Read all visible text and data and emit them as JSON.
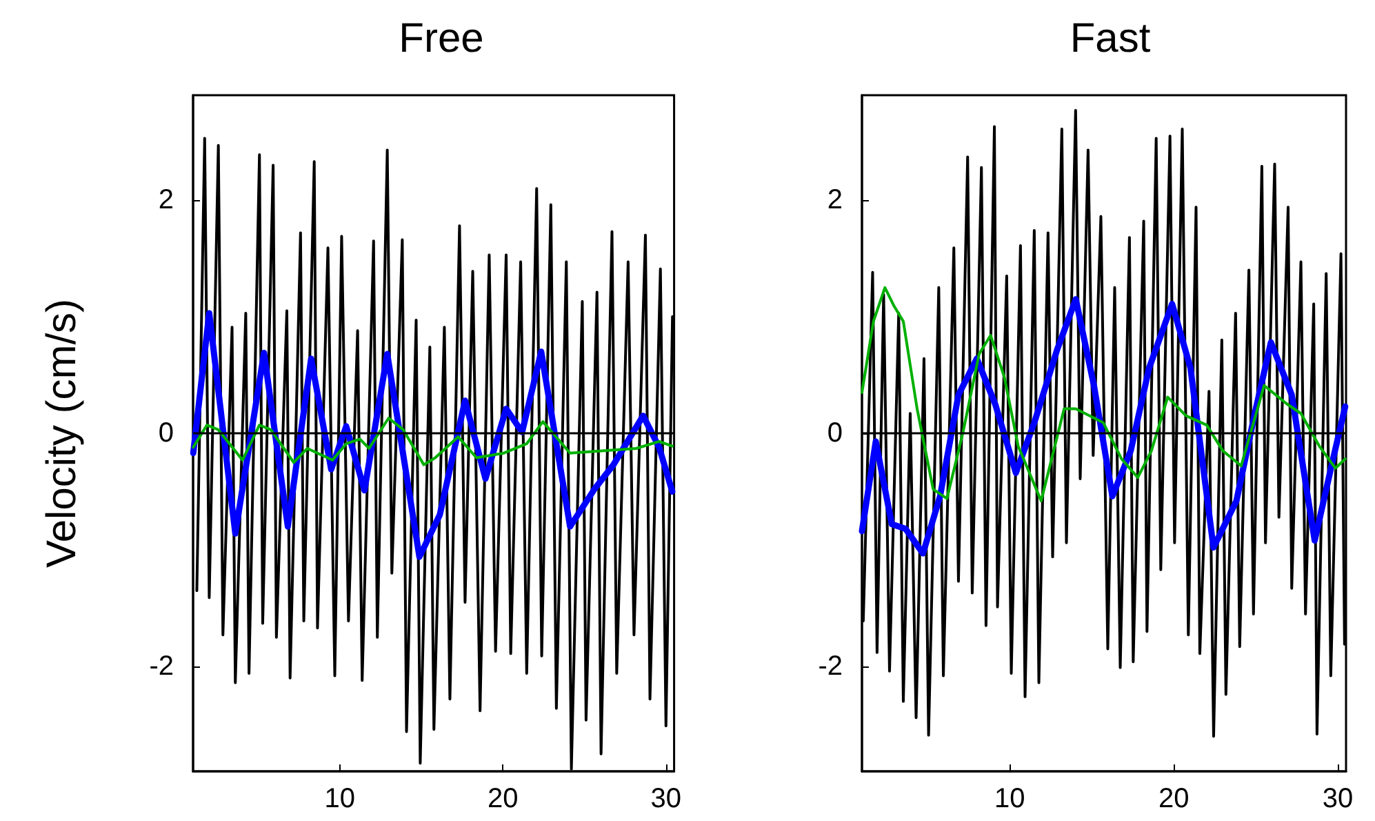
{
  "chart_data": [
    {
      "type": "line",
      "title": "Free",
      "ylabel": "Velocity (cm/s)",
      "xlim": [
        1,
        30.5
      ],
      "xticks": [
        10,
        20,
        30
      ],
      "ylim": [
        -2.9,
        2.9
      ],
      "yticks": [
        -2,
        0,
        2
      ],
      "grid": false,
      "marker": "none",
      "line_style": "solid",
      "ref_lines": [
        {
          "axis": "y",
          "value": 0,
          "color": "#000000"
        }
      ],
      "series": [
        {
          "color": "#000000",
          "x": [
            1.23,
            1.71,
            1.99,
            2.55,
            2.83,
            3.39,
            3.59,
            4.23,
            4.43,
            5.07,
            5.27,
            5.91,
            6.11,
            6.75,
            6.95,
            7.59,
            7.79,
            8.43,
            8.63,
            9.27,
            9.69,
            10.11,
            10.53,
            11.09,
            11.37,
            12.07,
            12.3,
            12.91,
            13.19,
            13.83,
            14.09,
            14.68,
            14.93,
            15.52,
            15.77,
            16.41,
            16.75,
            17.34,
            17.68,
            18.15,
            18.6,
            19.16,
            19.55,
            20.2,
            20.48,
            21.09,
            21.46,
            22.07,
            22.38,
            22.94,
            23.28,
            23.89,
            24.2,
            24.87,
            25.1,
            25.77,
            26.02,
            26.69,
            26.98,
            27.68,
            28.04,
            28.74,
            29.02,
            29.66,
            30,
            30.4
          ],
          "values": [
            -1.35,
            2.53,
            -1.41,
            2.47,
            -1.73,
            0.91,
            -2.14,
            1.03,
            -2.06,
            2.39,
            -1.63,
            2.3,
            -1.75,
            1.05,
            -2.1,
            1.72,
            -1.61,
            2.33,
            -1.67,
            1.59,
            -2.08,
            1.69,
            -1.61,
            0.88,
            -2.12,
            1.65,
            -1.75,
            2.43,
            -1.2,
            1.66,
            -2.56,
            0.97,
            -2.83,
            0.74,
            -2.54,
            0.91,
            -2.28,
            1.78,
            -1.45,
            1.39,
            -2.38,
            1.53,
            -1.87,
            1.53,
            -1.89,
            1.47,
            -2.06,
            2.1,
            -1.91,
            1.96,
            -2.36,
            1.47,
            -2.88,
            1.13,
            -2.46,
            1.21,
            -2.75,
            1.73,
            -2.06,
            1.47,
            -1.73,
            1.7,
            -2.28,
            1.41,
            -2.51,
            1
          ]
        },
        {
          "color": "#0000ff",
          "x": [
            1.01,
            1.99,
            3.59,
            5.35,
            6.81,
            8.24,
            9.47,
            10.39,
            11.51,
            12.91,
            14.88,
            16.13,
            17.68,
            18.93,
            20.2,
            21.18,
            22.35,
            24.12,
            25.66,
            26.78,
            28.6,
            29.58,
            30.39
          ],
          "values": [
            -0.17,
            1.03,
            -0.86,
            0.69,
            -0.8,
            0.64,
            -0.31,
            0.06,
            -0.49,
            0.68,
            -1.06,
            -0.7,
            0.28,
            -0.39,
            0.21,
            0.01,
            0.7,
            -0.8,
            -0.47,
            -0.27,
            0.15,
            -0.12,
            -0.5
          ]
        },
        {
          "color": "#00b000",
          "x": [
            1.01,
            1.85,
            2.55,
            4.03,
            5.07,
            5.77,
            7.17,
            8.01,
            9.55,
            10.39,
            11.23,
            11.79,
            12.99,
            13.89,
            15.15,
            15.85,
            17.26,
            18.38,
            20.06,
            21.46,
            22.45,
            24.12,
            26.22,
            28.18,
            29.58,
            30.39
          ],
          "values": [
            -0.12,
            0.07,
            0.03,
            -0.23,
            0.07,
            0.03,
            -0.25,
            -0.13,
            -0.23,
            -0.09,
            -0.05,
            -0.13,
            0.13,
            0.03,
            -0.27,
            -0.21,
            -0.03,
            -0.21,
            -0.17,
            -0.09,
            0.1,
            -0.17,
            -0.15,
            -0.13,
            -0.07,
            -0.11
          ]
        }
      ]
    },
    {
      "type": "line",
      "title": "Fast",
      "xlim": [
        1,
        30.5
      ],
      "xticks": [
        10,
        20,
        30
      ],
      "ylim": [
        -2.9,
        2.9
      ],
      "yticks": [
        -2,
        0,
        2
      ],
      "grid": false,
      "marker": "none",
      "line_style": "solid",
      "ref_lines": [
        {
          "axis": "y",
          "value": 0,
          "color": "#000000"
        }
      ],
      "series": [
        {
          "color": "#000000",
          "x": [
            1.08,
            1.65,
            1.92,
            2.32,
            2.68,
            3.24,
            3.52,
            3.94,
            4.3,
            4.78,
            5.06,
            5.68,
            5.96,
            6.6,
            6.88,
            7.44,
            7.72,
            8.28,
            8.56,
            9.07,
            9.26,
            9.82,
            10.1,
            10.66,
            10.94,
            11.5,
            11.78,
            12.34,
            12.62,
            13.18,
            13.46,
            14.02,
            14.3,
            14.78,
            15.09,
            15.56,
            15.98,
            16.4,
            16.74,
            17.3,
            17.53,
            18.17,
            18.37,
            18.93,
            19.21,
            19.77,
            20.05,
            20.52,
            20.89,
            21.36,
            21.59,
            22.15,
            22.43,
            22.93,
            23.18,
            23.77,
            24.02,
            24.58,
            24.86,
            25.37,
            25.59,
            26.15,
            26.41,
            26.97,
            27.19,
            27.75,
            28.03,
            28.53,
            28.73,
            29.29,
            29.57,
            30.19,
            30.41
          ],
          "values": [
            -1.61,
            1.38,
            -1.88,
            1.19,
            -2.04,
            1.03,
            -2.3,
            0.17,
            -2.44,
            0.64,
            -2.59,
            1.25,
            -2.08,
            1.59,
            -1.27,
            2.37,
            -1.37,
            2.28,
            -1.65,
            2.63,
            -1.49,
            1.35,
            -2.06,
            1.61,
            -2.26,
            1.74,
            -2.14,
            1.72,
            -1.06,
            2.61,
            -0.94,
            2.77,
            -0.39,
            2.43,
            -0.19,
            1.86,
            -1.85,
            1.25,
            -2.01,
            1.68,
            -1.96,
            1.82,
            -1.7,
            2.53,
            -1.17,
            2.55,
            -0.94,
            2.61,
            -1.73,
            1.94,
            -1.89,
            0.36,
            -2.6,
            0.8,
            -2.24,
            1.03,
            -1.83,
            1.4,
            -1.55,
            2.29,
            -0.94,
            2.31,
            -0.72,
            1.94,
            -1.33,
            1.47,
            -1.55,
            1.11,
            -2.58,
            1.37,
            -2.08,
            1.54,
            -1.81
          ]
        },
        {
          "color": "#0000ff",
          "x": [
            1,
            1.84,
            2.82,
            3.66,
            4.72,
            5.76,
            6.88,
            8,
            9.12,
            10.38,
            11.5,
            12.9,
            14.03,
            15.15,
            16.26,
            17.38,
            18.5,
            19.9,
            21.02,
            22.42,
            23.82,
            24.94,
            25.92,
            27.19,
            28.59,
            29.71,
            30.45
          ],
          "values": [
            -0.84,
            -0.07,
            -0.78,
            -0.82,
            -1.03,
            -0.54,
            0.33,
            0.64,
            0.25,
            -0.34,
            0.09,
            0.72,
            1.15,
            0.4,
            -0.54,
            -0.15,
            0.56,
            1.11,
            0.56,
            -0.98,
            -0.58,
            0.17,
            0.78,
            0.33,
            -0.92,
            -0.22,
            0.23
          ]
        },
        {
          "color": "#00b000",
          "x": [
            1,
            1.7,
            2.4,
            2.96,
            3.52,
            4.36,
            5.34,
            6.18,
            7.16,
            8.14,
            8.84,
            9.68,
            10.52,
            11.92,
            13.32,
            14.03,
            15.71,
            16.82,
            17.81,
            18.64,
            19.63,
            20.75,
            22.01,
            22.99,
            24.11,
            25.51,
            26.91,
            27.75,
            28.87,
            29.85,
            30.45
          ],
          "values": [
            0.35,
            0.96,
            1.25,
            1.09,
            0.96,
            0.21,
            -0.48,
            -0.56,
            0.01,
            0.68,
            0.84,
            0.48,
            -0.11,
            -0.58,
            0.21,
            0.21,
            0.09,
            -0.22,
            -0.38,
            -0.15,
            0.31,
            0.15,
            0.07,
            -0.15,
            -0.28,
            0.41,
            0.25,
            0.17,
            -0.11,
            -0.3,
            -0.22
          ]
        }
      ]
    }
  ]
}
